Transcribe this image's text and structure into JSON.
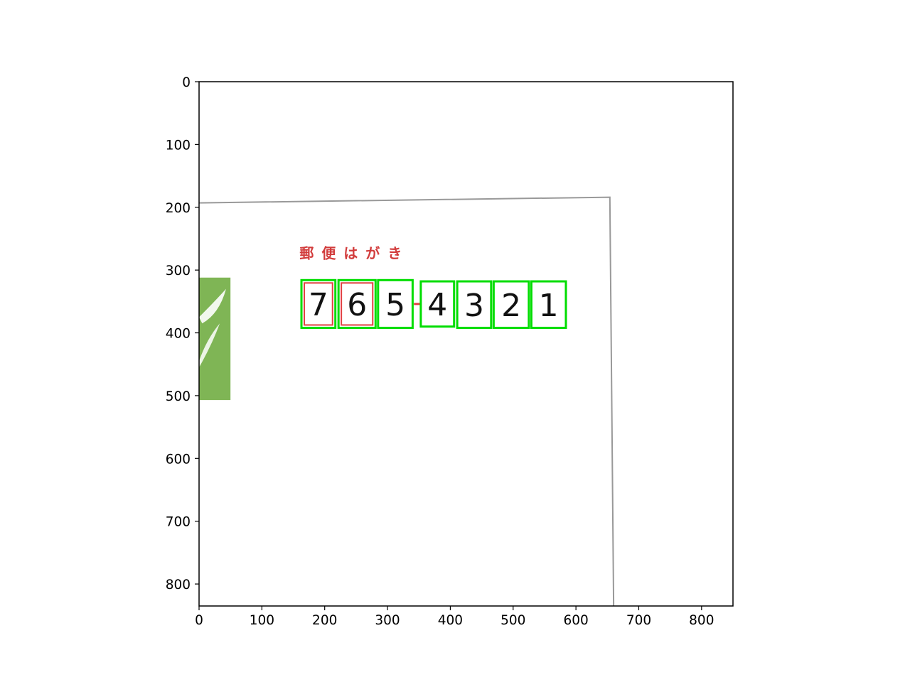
{
  "chart_data": {
    "type": "image",
    "title": "",
    "xlabel": "",
    "ylabel": "",
    "xlim": [
      0,
      850
    ],
    "ylim": [
      835,
      0
    ],
    "xticks": [
      0,
      100,
      200,
      300,
      400,
      500,
      600,
      700,
      800
    ],
    "yticks": [
      0,
      100,
      200,
      300,
      400,
      500,
      600,
      700,
      800
    ],
    "grid": false,
    "postcard_title": "郵 便 は が き",
    "postcard_outline": [
      [
        0,
        193
      ],
      [
        654,
        184
      ],
      [
        660,
        835
      ]
    ],
    "stamp_region": {
      "x0": 0,
      "y0": 312,
      "x1": 50,
      "y1": 507
    },
    "detections": [
      {
        "digit": "7",
        "x0": 163,
        "y0": 316,
        "x1": 217,
        "y1": 392
      },
      {
        "digit": "6",
        "x0": 222,
        "y0": 316,
        "x1": 281,
        "y1": 392
      },
      {
        "digit": "5",
        "x0": 285,
        "y0": 316,
        "x1": 340,
        "y1": 392
      },
      {
        "digit": "4",
        "x0": 353,
        "y0": 318,
        "x1": 406,
        "y1": 390
      },
      {
        "digit": "3",
        "x0": 411,
        "y0": 318,
        "x1": 465,
        "y1": 392
      },
      {
        "digit": "2",
        "x0": 469,
        "y0": 318,
        "x1": 525,
        "y1": 392
      },
      {
        "digit": "1",
        "x0": 529,
        "y0": 318,
        "x1": 584,
        "y1": 392
      }
    ],
    "colors": {
      "detection_box": "#00dd00",
      "digit_cell": "#e04040",
      "postcard_outline": "#999999",
      "stamp": "#7fb555",
      "postcard_title": "#d23c3c"
    }
  }
}
